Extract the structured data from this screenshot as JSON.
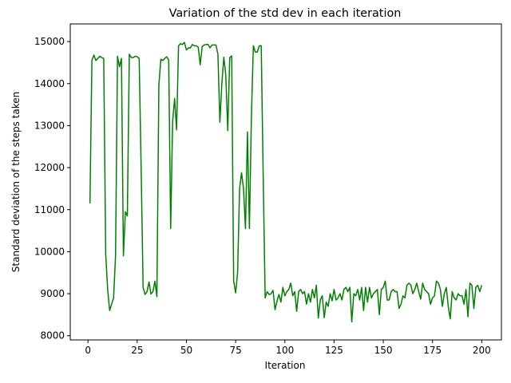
{
  "chart_data": {
    "type": "line",
    "title": "Variation of the std dev in each iteration",
    "x_label": "Iteration",
    "y_label": "Standard deviation of the steps taken",
    "xlim": [
      -9,
      210
    ],
    "ylim": [
      7900,
      15420
    ],
    "xticks": [
      0,
      25,
      50,
      75,
      100,
      125,
      150,
      175,
      200
    ],
    "yticks": [
      8000,
      9000,
      10000,
      11000,
      12000,
      13000,
      14000,
      15000
    ],
    "grid": false,
    "x": [
      1,
      2,
      3,
      4,
      5,
      6,
      7,
      8,
      9,
      10,
      11,
      12,
      13,
      14,
      15,
      16,
      17,
      18,
      19,
      20,
      21,
      22,
      23,
      24,
      25,
      26,
      27,
      28,
      29,
      30,
      31,
      32,
      33,
      34,
      35,
      36,
      37,
      38,
      39,
      40,
      41,
      42,
      43,
      44,
      45,
      46,
      47,
      48,
      49,
      50,
      51,
      52,
      53,
      54,
      55,
      56,
      57,
      58,
      59,
      60,
      61,
      62,
      63,
      64,
      65,
      66,
      67,
      68,
      69,
      70,
      71,
      72,
      73,
      74,
      75,
      76,
      77,
      78,
      79,
      80,
      81,
      82,
      83,
      84,
      85,
      86,
      87,
      88,
      89,
      90,
      91,
      92,
      93,
      94,
      95,
      96,
      97,
      98,
      99,
      100,
      101,
      102,
      103,
      104,
      105,
      106,
      107,
      108,
      109,
      110,
      111,
      112,
      113,
      114,
      115,
      116,
      117,
      118,
      119,
      120,
      121,
      122,
      123,
      124,
      125,
      126,
      127,
      128,
      129,
      130,
      131,
      132,
      133,
      134,
      135,
      136,
      137,
      138,
      139,
      140,
      141,
      142,
      143,
      144,
      145,
      146,
      147,
      148,
      149,
      150,
      151,
      152,
      153,
      154,
      155,
      156,
      157,
      158,
      159,
      160,
      161,
      162,
      163,
      164,
      165,
      166,
      167,
      168,
      169,
      170,
      171,
      172,
      173,
      174,
      175,
      176,
      177,
      178,
      179,
      180,
      181,
      182,
      183,
      184,
      185,
      186,
      187,
      188,
      189,
      190,
      191,
      192,
      193,
      194,
      195,
      196,
      197,
      198,
      199,
      200
    ],
    "series": [
      {
        "color": "#008000",
        "values": [
          11150,
          14550,
          14680,
          14550,
          14600,
          14650,
          14620,
          14600,
          9950,
          9100,
          8600,
          8750,
          8900,
          9900,
          14650,
          14400,
          14600,
          9900,
          10950,
          10850,
          14700,
          14620,
          14620,
          14650,
          14640,
          14600,
          12000,
          9150,
          8980,
          9050,
          9280,
          8990,
          9050,
          9300,
          8930,
          13950,
          14580,
          14550,
          14600,
          14640,
          14560,
          10550,
          13100,
          13650,
          12900,
          14900,
          14950,
          14930,
          14980,
          14800,
          14850,
          14850,
          14930,
          14900,
          14900,
          14870,
          14450,
          14880,
          14920,
          14930,
          14930,
          14850,
          14920,
          14920,
          14920,
          14700,
          13080,
          14000,
          14630,
          14200,
          12880,
          14620,
          14660,
          9300,
          9020,
          9500,
          11500,
          11880,
          11500,
          10550,
          12850,
          10550,
          13200,
          14900,
          14750,
          14750,
          14900,
          14900,
          11800,
          8900,
          9050,
          8980,
          9000,
          9080,
          8620,
          8820,
          8980,
          8800,
          9150,
          8950,
          9050,
          9100,
          9250,
          8950,
          9050,
          8580,
          9050,
          9100,
          9000,
          9050,
          8750,
          9000,
          8800,
          9100,
          8900,
          9200,
          8420,
          8850,
          8950,
          8430,
          8800,
          8700,
          9000,
          8830,
          9100,
          8850,
          8900,
          9000,
          8850,
          9100,
          9150,
          9050,
          9150,
          8330,
          9000,
          8950,
          9100,
          8850,
          9150,
          8600,
          9150,
          8800,
          9150,
          8900,
          9000,
          9050,
          9100,
          8500,
          9100,
          9150,
          9300,
          8850,
          8850,
          9050,
          9100,
          9050,
          9050,
          8650,
          8750,
          8950,
          8900,
          9200,
          9250,
          9200,
          9000,
          9100,
          9250,
          9050,
          8870,
          9250,
          9100,
          9050,
          9000,
          8750,
          8900,
          8950,
          9300,
          9250,
          9100,
          8700,
          9000,
          9150,
          8700,
          8400,
          9050,
          8900,
          8850,
          9000,
          8950,
          8950,
          8750,
          9100,
          8450,
          9250,
          9200,
          8650,
          9150,
          9200,
          9050,
          9200
        ]
      }
    ]
  }
}
